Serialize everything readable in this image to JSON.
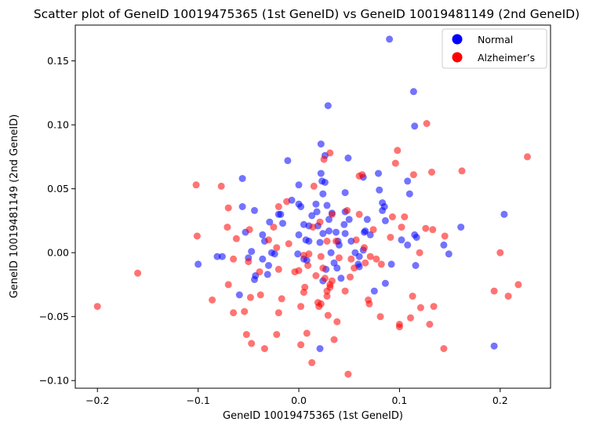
{
  "chart_data": {
    "type": "scatter",
    "title": "Scatter plot of GeneID 10019475365 (1st GeneID) vs GeneID 10019481149 (2nd GeneID)",
    "xlabel": "GeneID 10019475365 (1st GeneID)",
    "ylabel": "GeneID 10019481149 (2nd GeneID)",
    "xlim": [
      -0.222,
      0.25
    ],
    "ylim": [
      -0.106,
      0.178
    ],
    "x_ticks": [
      -0.2,
      -0.1,
      0.0,
      0.1,
      0.2
    ],
    "x_tick_labels": [
      "−0.2",
      "−0.1",
      "0.0",
      "0.1",
      "0.2"
    ],
    "y_ticks": [
      -0.1,
      -0.05,
      0.0,
      0.05,
      0.1,
      0.15
    ],
    "y_tick_labels": [
      "−0.10",
      "−0.05",
      "0.00",
      "0.05",
      "0.10",
      "0.15"
    ],
    "grid": false,
    "legend": "top-right",
    "series": [
      {
        "name": "Normal",
        "color": "#0000ff",
        "points": [
          [
            0.09,
            0.167
          ],
          [
            0.114,
            0.126
          ],
          [
            0.029,
            0.115
          ],
          [
            0.115,
            0.099
          ],
          [
            0.022,
            0.085
          ],
          [
            0.026,
            0.076
          ],
          [
            -0.011,
            0.072
          ],
          [
            0.049,
            0.074
          ],
          [
            0.0,
            0.053
          ],
          [
            0.022,
            0.062
          ],
          [
            0.064,
            0.059
          ],
          [
            0.079,
            0.062
          ],
          [
            0.108,
            0.056
          ],
          [
            -0.056,
            0.058
          ],
          [
            0.023,
            0.056
          ],
          [
            0.046,
            0.047
          ],
          [
            0.026,
            0.055
          ],
          [
            0.08,
            0.049
          ],
          [
            0.11,
            0.046
          ],
          [
            0.024,
            0.046
          ],
          [
            -0.007,
            0.041
          ],
          [
            0.0,
            0.038
          ],
          [
            0.002,
            0.036
          ],
          [
            0.017,
            0.038
          ],
          [
            0.028,
            0.037
          ],
          [
            0.083,
            0.039
          ],
          [
            -0.02,
            0.03
          ],
          [
            -0.018,
            0.03
          ],
          [
            -0.056,
            0.036
          ],
          [
            -0.044,
            0.033
          ],
          [
            0.013,
            0.029
          ],
          [
            0.03,
            0.026
          ],
          [
            0.085,
            0.036
          ],
          [
            0.046,
            0.032
          ],
          [
            0.068,
            0.026
          ],
          [
            -0.016,
            0.023
          ],
          [
            -0.029,
            0.024
          ],
          [
            0.005,
            0.022
          ],
          [
            0.01,
            0.021
          ],
          [
            0.019,
            0.021
          ],
          [
            0.045,
            0.022
          ],
          [
            0.083,
            0.033
          ],
          [
            0.05,
            0.026
          ],
          [
            -0.053,
            0.016
          ],
          [
            0.03,
            0.017
          ],
          [
            0.066,
            0.017
          ],
          [
            0.0,
            0.014
          ],
          [
            0.037,
            0.016
          ],
          [
            0.024,
            0.015
          ],
          [
            0.065,
            0.016
          ],
          [
            0.115,
            0.014
          ],
          [
            0.161,
            0.02
          ],
          [
            0.204,
            0.03
          ],
          [
            0.071,
            0.014
          ],
          [
            0.046,
            0.015
          ],
          [
            0.117,
            0.012
          ],
          [
            0.086,
            0.025
          ],
          [
            -0.034,
            0.009
          ],
          [
            0.007,
            0.01
          ],
          [
            0.01,
            0.009
          ],
          [
            0.021,
            0.008
          ],
          [
            0.052,
            0.009
          ],
          [
            0.102,
            0.01
          ],
          [
            0.144,
            0.006
          ],
          [
            0.04,
            0.006
          ],
          [
            0.056,
            0.0
          ],
          [
            -0.027,
            0.0
          ],
          [
            -0.047,
            0.001
          ],
          [
            0.064,
            0.002
          ],
          [
            -0.081,
            -0.003
          ],
          [
            -0.076,
            -0.003
          ],
          [
            -0.05,
            -0.004
          ],
          [
            0.032,
            0.0
          ],
          [
            0.108,
            0.006
          ],
          [
            -0.001,
            -0.001
          ],
          [
            0.149,
            -0.001
          ],
          [
            0.06,
            -0.003
          ],
          [
            -0.036,
            -0.005
          ],
          [
            -0.024,
            -0.001
          ],
          [
            0.008,
            -0.006
          ],
          [
            0.035,
            -0.008
          ],
          [
            0.06,
            -0.011
          ],
          [
            0.092,
            -0.009
          ],
          [
            0.116,
            -0.01
          ],
          [
            -0.1,
            -0.009
          ],
          [
            -0.043,
            -0.018
          ],
          [
            -0.03,
            -0.01
          ],
          [
            0.027,
            -0.013
          ],
          [
            0.038,
            -0.012
          ],
          [
            0.059,
            -0.009
          ],
          [
            0.024,
            -0.022
          ],
          [
            0.042,
            -0.02
          ],
          [
            0.086,
            -0.024
          ],
          [
            0.075,
            -0.03
          ],
          [
            -0.031,
            -0.017
          ],
          [
            -0.044,
            -0.021
          ],
          [
            -0.059,
            -0.033
          ],
          [
            0.194,
            -0.073
          ],
          [
            0.021,
            -0.075
          ],
          [
            0.005,
            -0.005
          ],
          [
            0.039,
            0.009
          ],
          [
            0.018,
            0.032
          ],
          [
            0.033,
            0.031
          ],
          [
            -0.036,
            0.014
          ]
        ]
      },
      {
        "name": "Alzheimer’s",
        "color": "#ff0000",
        "points": [
          [
            0.127,
            0.101
          ],
          [
            0.098,
            0.08
          ],
          [
            0.031,
            0.078
          ],
          [
            0.025,
            0.073
          ],
          [
            0.096,
            0.07
          ],
          [
            0.162,
            0.064
          ],
          [
            0.227,
            0.075
          ],
          [
            0.132,
            0.063
          ],
          [
            0.063,
            0.061
          ],
          [
            0.114,
            0.061
          ],
          [
            -0.102,
            0.053
          ],
          [
            -0.077,
            0.052
          ],
          [
            0.015,
            0.052
          ],
          [
            -0.012,
            0.04
          ],
          [
            0.048,
            0.033
          ],
          [
            0.06,
            0.03
          ],
          [
            0.093,
            0.028
          ],
          [
            0.074,
            0.018
          ],
          [
            -0.07,
            0.035
          ],
          [
            -0.02,
            0.036
          ],
          [
            0.033,
            0.03
          ],
          [
            0.105,
            0.028
          ],
          [
            0.021,
            0.024
          ],
          [
            -0.025,
            0.02
          ],
          [
            -0.049,
            0.018
          ],
          [
            -0.071,
            0.02
          ],
          [
            0.126,
            0.019
          ],
          [
            0.133,
            0.018
          ],
          [
            0.145,
            0.013
          ],
          [
            -0.101,
            0.013
          ],
          [
            -0.062,
            0.011
          ],
          [
            -0.03,
            0.01
          ],
          [
            0.091,
            0.012
          ],
          [
            0.102,
            0.02
          ],
          [
            -0.022,
            0.004
          ],
          [
            0.057,
            0.01
          ],
          [
            0.014,
            0.02
          ],
          [
            -0.01,
            0.007
          ],
          [
            0.065,
            0.004
          ],
          [
            0.071,
            -0.003
          ],
          [
            0.077,
            -0.005
          ],
          [
            0.12,
            0.0
          ],
          [
            0.2,
            0.0
          ],
          [
            -0.065,
            -0.005
          ],
          [
            -0.05,
            -0.007
          ],
          [
            0.005,
            -0.002
          ],
          [
            0.022,
            -0.003
          ],
          [
            0.04,
            -0.004
          ],
          [
            0.052,
            -0.005
          ],
          [
            -0.039,
            -0.015
          ],
          [
            -0.02,
            -0.013
          ],
          [
            0.0,
            -0.014
          ],
          [
            0.009,
            -0.01
          ],
          [
            0.026,
            -0.02
          ],
          [
            0.066,
            -0.008
          ],
          [
            -0.16,
            -0.016
          ],
          [
            -0.07,
            -0.025
          ],
          [
            0.031,
            -0.027
          ],
          [
            0.051,
            -0.019
          ],
          [
            0.082,
            -0.009
          ],
          [
            0.218,
            -0.025
          ],
          [
            0.208,
            -0.034
          ],
          [
            -0.048,
            -0.035
          ],
          [
            -0.038,
            -0.033
          ],
          [
            -0.017,
            -0.036
          ],
          [
            0.005,
            -0.031
          ],
          [
            0.028,
            -0.03
          ],
          [
            -0.054,
            -0.046
          ],
          [
            -0.086,
            -0.037
          ],
          [
            0.069,
            -0.037
          ],
          [
            0.07,
            -0.04
          ],
          [
            0.113,
            -0.034
          ],
          [
            0.121,
            -0.043
          ],
          [
            0.134,
            -0.042
          ],
          [
            0.194,
            -0.03
          ],
          [
            -0.2,
            -0.042
          ],
          [
            -0.065,
            -0.047
          ],
          [
            -0.02,
            -0.047
          ],
          [
            0.002,
            -0.042
          ],
          [
            0.022,
            -0.04
          ],
          [
            0.029,
            -0.049
          ],
          [
            0.081,
            -0.05
          ],
          [
            0.1,
            -0.056
          ],
          [
            0.111,
            -0.051
          ],
          [
            -0.022,
            -0.064
          ],
          [
            0.008,
            -0.063
          ],
          [
            0.038,
            -0.054
          ],
          [
            0.13,
            -0.056
          ],
          [
            -0.052,
            -0.064
          ],
          [
            -0.047,
            -0.071
          ],
          [
            -0.034,
            -0.075
          ],
          [
            0.002,
            -0.072
          ],
          [
            0.035,
            -0.068
          ],
          [
            0.1,
            -0.058
          ],
          [
            0.144,
            -0.075
          ],
          [
            0.013,
            -0.086
          ],
          [
            0.049,
            -0.095
          ],
          [
            0.019,
            -0.039
          ],
          [
            0.024,
            -0.012
          ],
          [
            0.055,
            -0.012
          ],
          [
            0.017,
            -0.018
          ],
          [
            0.031,
            -0.025
          ],
          [
            0.006,
            -0.027
          ],
          [
            -0.004,
            -0.015
          ],
          [
            0.028,
            0.009
          ],
          [
            0.037,
            0.009
          ],
          [
            0.01,
            -0.001
          ],
          [
            0.06,
            0.06
          ],
          [
            0.02,
            -0.042
          ],
          [
            0.046,
            -0.03
          ],
          [
            0.033,
            -0.022
          ],
          [
            0.028,
            -0.034
          ]
        ]
      }
    ]
  }
}
